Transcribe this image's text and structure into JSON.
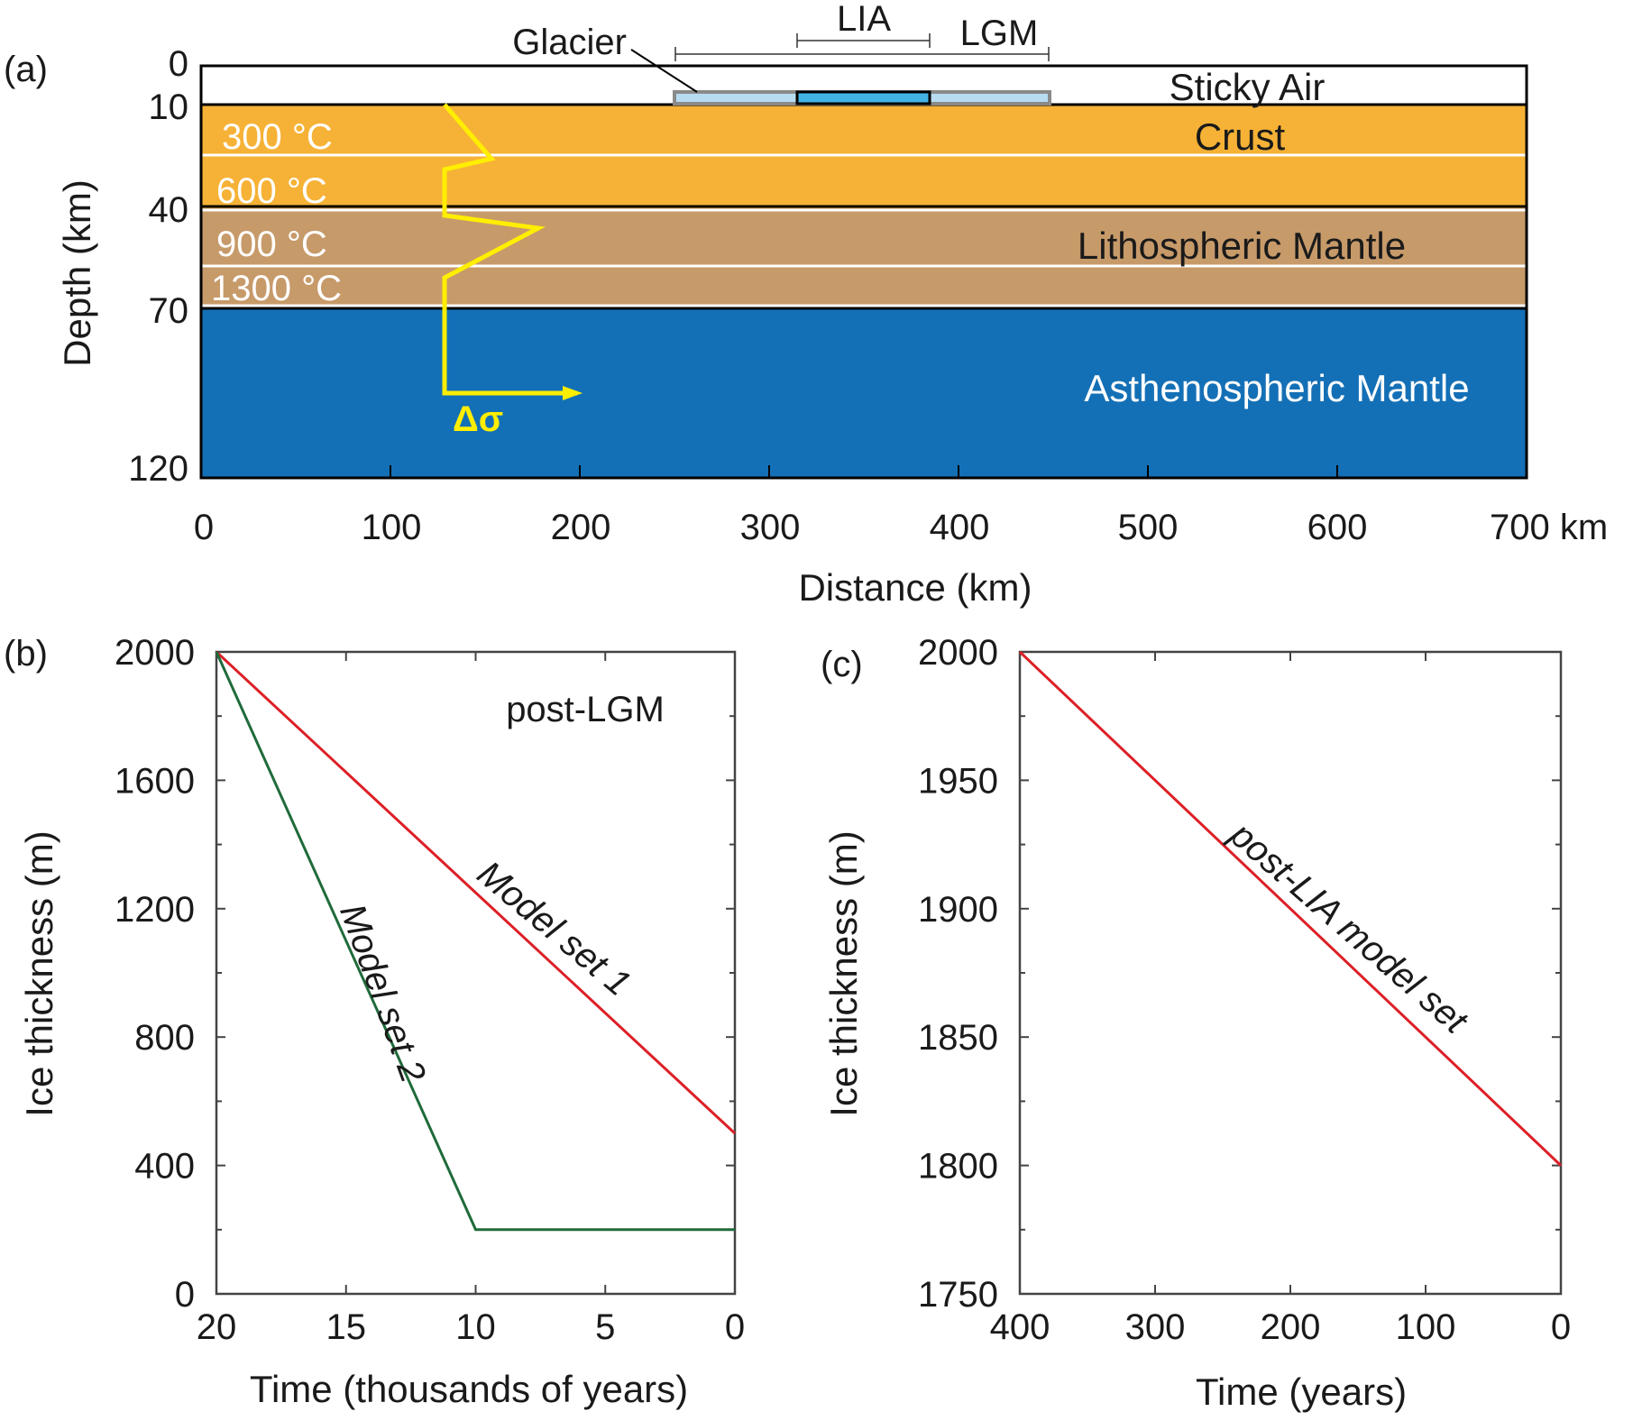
{
  "panel_a": {
    "label": "(a)",
    "ylabel": "Depth (km)",
    "xlabel": "Distance (km)",
    "depth_ticks": [
      "0",
      "10",
      "40",
      "70",
      "120"
    ],
    "distance_ticks": [
      "0",
      "100",
      "200",
      "300",
      "400",
      "500",
      "600",
      "700 km"
    ],
    "layers": {
      "sticky_air": "Sticky Air",
      "crust": "Crust",
      "lith": "Lithospheric Mantle",
      "asth": "Asthenospheric Mantle"
    },
    "temperatures": [
      "300 °C",
      "600 °C",
      "900 °C",
      "1300 °C"
    ],
    "glacier_label": "Glacier",
    "lia_label": "LIA",
    "lgm_label": "LGM",
    "stress_label": "Δσ",
    "colors": {
      "crust": "#f6b236",
      "lith": "#c79a6a",
      "asth": "#1470b6",
      "ice_lgm": "#b7dcf1",
      "ice_lia": "#43b3e6",
      "stress": "#ffee00"
    }
  },
  "chart_data": [
    {
      "type": "line",
      "panel": "(b)",
      "annotation": "post-LGM",
      "xlabel": "Time (thousands of years)",
      "ylabel": "Ice thickness  (m)",
      "xlim": [
        20,
        0
      ],
      "ylim": [
        0,
        2000
      ],
      "x_ticks": [
        "20",
        "15",
        "10",
        "5",
        "0"
      ],
      "y_ticks": [
        "0",
        "400",
        "800",
        "1200",
        "1600",
        "2000"
      ],
      "series": [
        {
          "name": "Model set 1",
          "color": "#dd1f26",
          "x": [
            20,
            0
          ],
          "y": [
            2000,
            500
          ]
        },
        {
          "name": "Model set 2",
          "color": "#1f6b3a",
          "x": [
            20,
            10,
            0
          ],
          "y": [
            2000,
            200,
            200
          ]
        }
      ]
    },
    {
      "type": "line",
      "panel": "(c)",
      "xlabel": "Time (years)",
      "ylabel": "Ice thickness  (m)",
      "xlim": [
        400,
        0
      ],
      "ylim": [
        1750,
        2000
      ],
      "x_ticks": [
        "400",
        "300",
        "200",
        "100",
        "0"
      ],
      "y_ticks": [
        "1750",
        "1800",
        "1850",
        "1900",
        "1950",
        "2000"
      ],
      "series": [
        {
          "name": "post-LIA model set",
          "color": "#dd1f26",
          "x": [
            400,
            0
          ],
          "y": [
            2000,
            1800
          ]
        }
      ]
    }
  ]
}
